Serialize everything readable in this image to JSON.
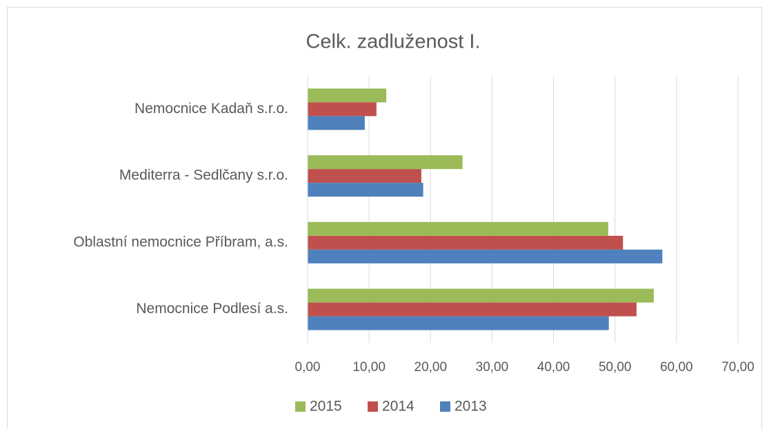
{
  "chart_data": {
    "type": "hbar",
    "title": "Celk. zadluženost I.",
    "categories": [
      "Nemocnice Kadaň s.r.o.",
      "Mediterra  - Sedlčany s.r.o.",
      "Oblastní nemocnice Příbram, a.s.",
      "Nemocnice Podlesí a.s."
    ],
    "series": [
      {
        "name": "2015",
        "color": "#9bbb59",
        "values": [
          12.8,
          25.2,
          48.9,
          56.3
        ]
      },
      {
        "name": "2014",
        "color": "#c0504d",
        "values": [
          11.2,
          18.5,
          51.3,
          53.5
        ]
      },
      {
        "name": "2013",
        "color": "#4f81bd",
        "values": [
          9.3,
          18.8,
          57.7,
          49.0
        ]
      }
    ],
    "xlim": [
      0,
      70
    ],
    "xticks": [
      {
        "value": 0,
        "label": "0,00"
      },
      {
        "value": 10,
        "label": "10,00"
      },
      {
        "value": 20,
        "label": "20,00"
      },
      {
        "value": 30,
        "label": "30,00"
      },
      {
        "value": 40,
        "label": "40,00"
      },
      {
        "value": 50,
        "label": "50,00"
      },
      {
        "value": 60,
        "label": "60,00"
      },
      {
        "value": 70,
        "label": "70,00"
      }
    ],
    "grid": true,
    "legend": "bottom"
  }
}
